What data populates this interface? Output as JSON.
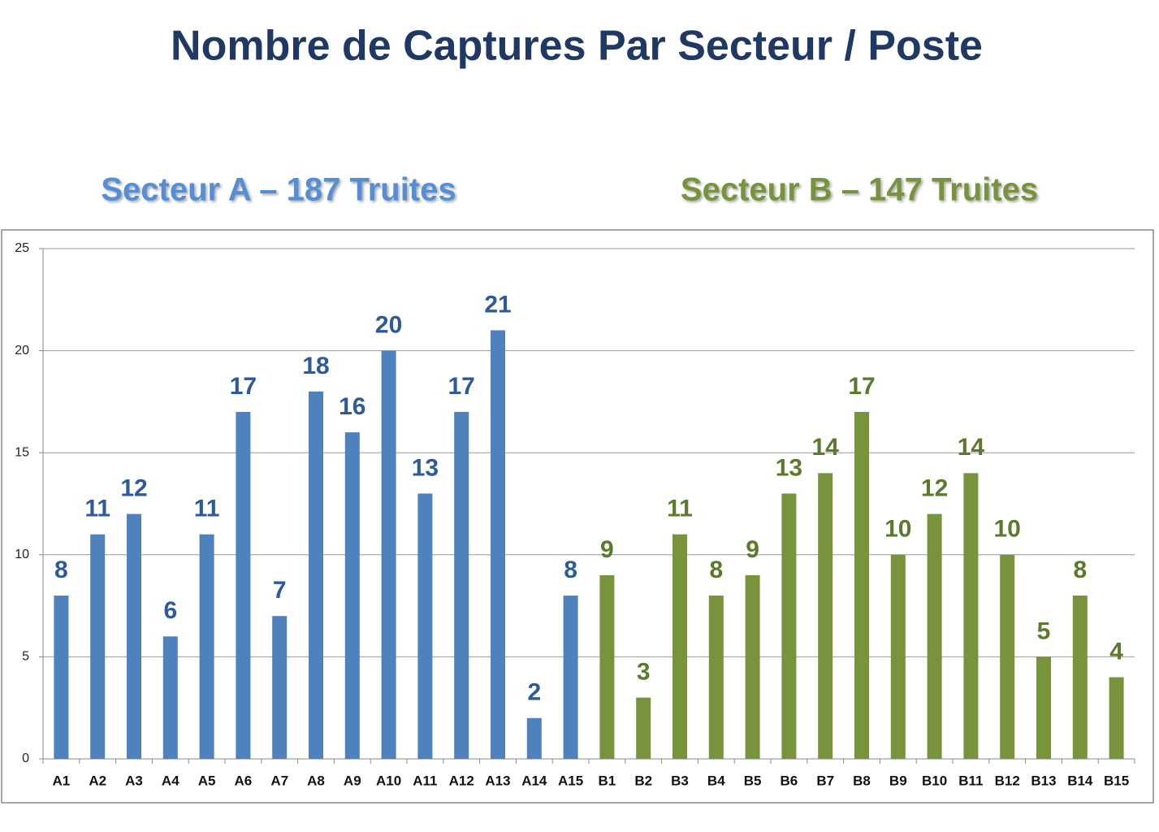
{
  "chart_data": {
    "type": "bar",
    "title": "Nombre de Captures Par Secteur / Poste",
    "annotations": [
      {
        "text": "Secteur A – 187 Truites",
        "color": "#558ed5"
      },
      {
        "text": "Secteur B – 147 Truites",
        "color": "#77933c"
      }
    ],
    "categories": [
      "A1",
      "A2",
      "A3",
      "A4",
      "A5",
      "A6",
      "A7",
      "A8",
      "A9",
      "A10",
      "A11",
      "A12",
      "A13",
      "A14",
      "A15",
      "B1",
      "B2",
      "B3",
      "B4",
      "B5",
      "B6",
      "B7",
      "B8",
      "B9",
      "B10",
      "B11",
      "B12",
      "B13",
      "B14",
      "B15"
    ],
    "values": [
      8,
      11,
      12,
      6,
      11,
      17,
      7,
      18,
      16,
      20,
      13,
      17,
      21,
      2,
      8,
      9,
      3,
      11,
      8,
      9,
      13,
      14,
      17,
      10,
      12,
      14,
      10,
      5,
      8,
      4
    ],
    "colors": [
      "#4f81bd",
      "#4f81bd",
      "#4f81bd",
      "#4f81bd",
      "#4f81bd",
      "#4f81bd",
      "#4f81bd",
      "#4f81bd",
      "#4f81bd",
      "#4f81bd",
      "#4f81bd",
      "#4f81bd",
      "#4f81bd",
      "#4f81bd",
      "#4f81bd",
      "#77933c",
      "#77933c",
      "#77933c",
      "#77933c",
      "#77933c",
      "#77933c",
      "#77933c",
      "#77933c",
      "#77933c",
      "#77933c",
      "#77933c",
      "#77933c",
      "#77933c",
      "#77933c",
      "#77933c"
    ],
    "label_colors": [
      "#2c5a9c",
      "#2c5a9c",
      "#2c5a9c",
      "#2c5a9c",
      "#2c5a9c",
      "#2c5a9c",
      "#2c5a9c",
      "#2c5a9c",
      "#2c5a9c",
      "#2c5a9c",
      "#2c5a9c",
      "#2c5a9c",
      "#2c5a9c",
      "#2c5a9c",
      "#2c5a9c",
      "#5b7a2b",
      "#5b7a2b",
      "#5b7a2b",
      "#5b7a2b",
      "#5b7a2b",
      "#5b7a2b",
      "#5b7a2b",
      "#5b7a2b",
      "#5b7a2b",
      "#5b7a2b",
      "#5b7a2b",
      "#5b7a2b",
      "#5b7a2b",
      "#5b7a2b",
      "#5b7a2b"
    ],
    "ylim": [
      0,
      25
    ],
    "yticks": [
      0,
      5,
      10,
      15,
      20,
      25
    ],
    "grid": true
  }
}
